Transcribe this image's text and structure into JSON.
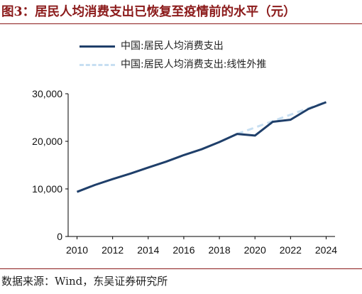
{
  "figure": {
    "title": "图3：居民人均消费支出已恢复至疫情前的水平（元）",
    "source": "数据来源：Wind，东吴证券研究所"
  },
  "colors": {
    "actual": "#1f3f6a",
    "trend": "#c7dff2",
    "accent": "#8b1a1a"
  },
  "chart_data": {
    "type": "line",
    "title": "图3：居民人均消费支出已恢复至疫情前的水平（元）",
    "xlabel": "",
    "ylabel": "",
    "xlim": [
      2009.5,
      2024.5
    ],
    "ylim": [
      0,
      30000
    ],
    "x_ticks": [
      "2010",
      "2012",
      "2014",
      "2016",
      "2018",
      "2020",
      "2022",
      "2024"
    ],
    "y_ticks": [
      "0",
      "10,000",
      "20,000",
      "30,000"
    ],
    "legend_position": "top-left",
    "grid": false,
    "series": [
      {
        "name": "中国:居民人均消费支出",
        "style": "solid",
        "x": [
          2010,
          2011,
          2012,
          2013,
          2014,
          2015,
          2016,
          2017,
          2018,
          2019,
          2020,
          2021,
          2022,
          2023,
          2024
        ],
        "values": [
          9378,
          10820,
          12054,
          13220,
          14491,
          15712,
          17111,
          18322,
          19853,
          21559,
          21210,
          24100,
          24538,
          26796,
          28227
        ]
      },
      {
        "name": "中国:居民人均消费支出:线性外推",
        "style": "dashed",
        "x": [
          2019,
          2020,
          2021,
          2022,
          2023,
          2024
        ],
        "values": [
          21559,
          22900,
          24250,
          25600,
          26950,
          28300
        ]
      }
    ]
  }
}
